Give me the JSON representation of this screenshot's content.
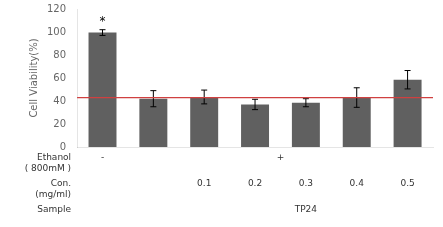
{
  "chart_data": {
    "type": "bar",
    "categories": [
      null,
      null,
      null,
      null,
      null,
      null,
      null
    ],
    "values": [
      99.5,
      42.0,
      43.5,
      37.0,
      38.5,
      43.0,
      58.5
    ],
    "errors": [
      2.5,
      7.0,
      6.0,
      4.5,
      3.5,
      8.5,
      8.0
    ],
    "color": "#606060",
    "ylabel": "Cell Viability(%)",
    "ylim": [
      0,
      120
    ],
    "yticks": [
      0,
      20,
      40,
      60,
      80,
      100,
      120
    ],
    "grid": false,
    "hline": {
      "y": 43.0,
      "color": "#d04040"
    },
    "bar_annotations": [
      "*",
      null,
      null,
      null,
      null,
      null,
      null
    ],
    "table": [
      {
        "label": "Ethanol\n( 800mM )",
        "values": [
          "-",
          "+",
          "+",
          "+",
          "+",
          "+",
          "+"
        ]
      },
      {
        "label": "Con.\n(mg/ml)",
        "values": [
          null,
          null,
          "0.1",
          "0.2",
          "0.3",
          "0.4",
          "0.5"
        ]
      },
      {
        "label": "Sample",
        "values": [
          null,
          null,
          "TP24",
          "TP24",
          "TP24",
          "TP24",
          "TP24"
        ]
      }
    ]
  }
}
